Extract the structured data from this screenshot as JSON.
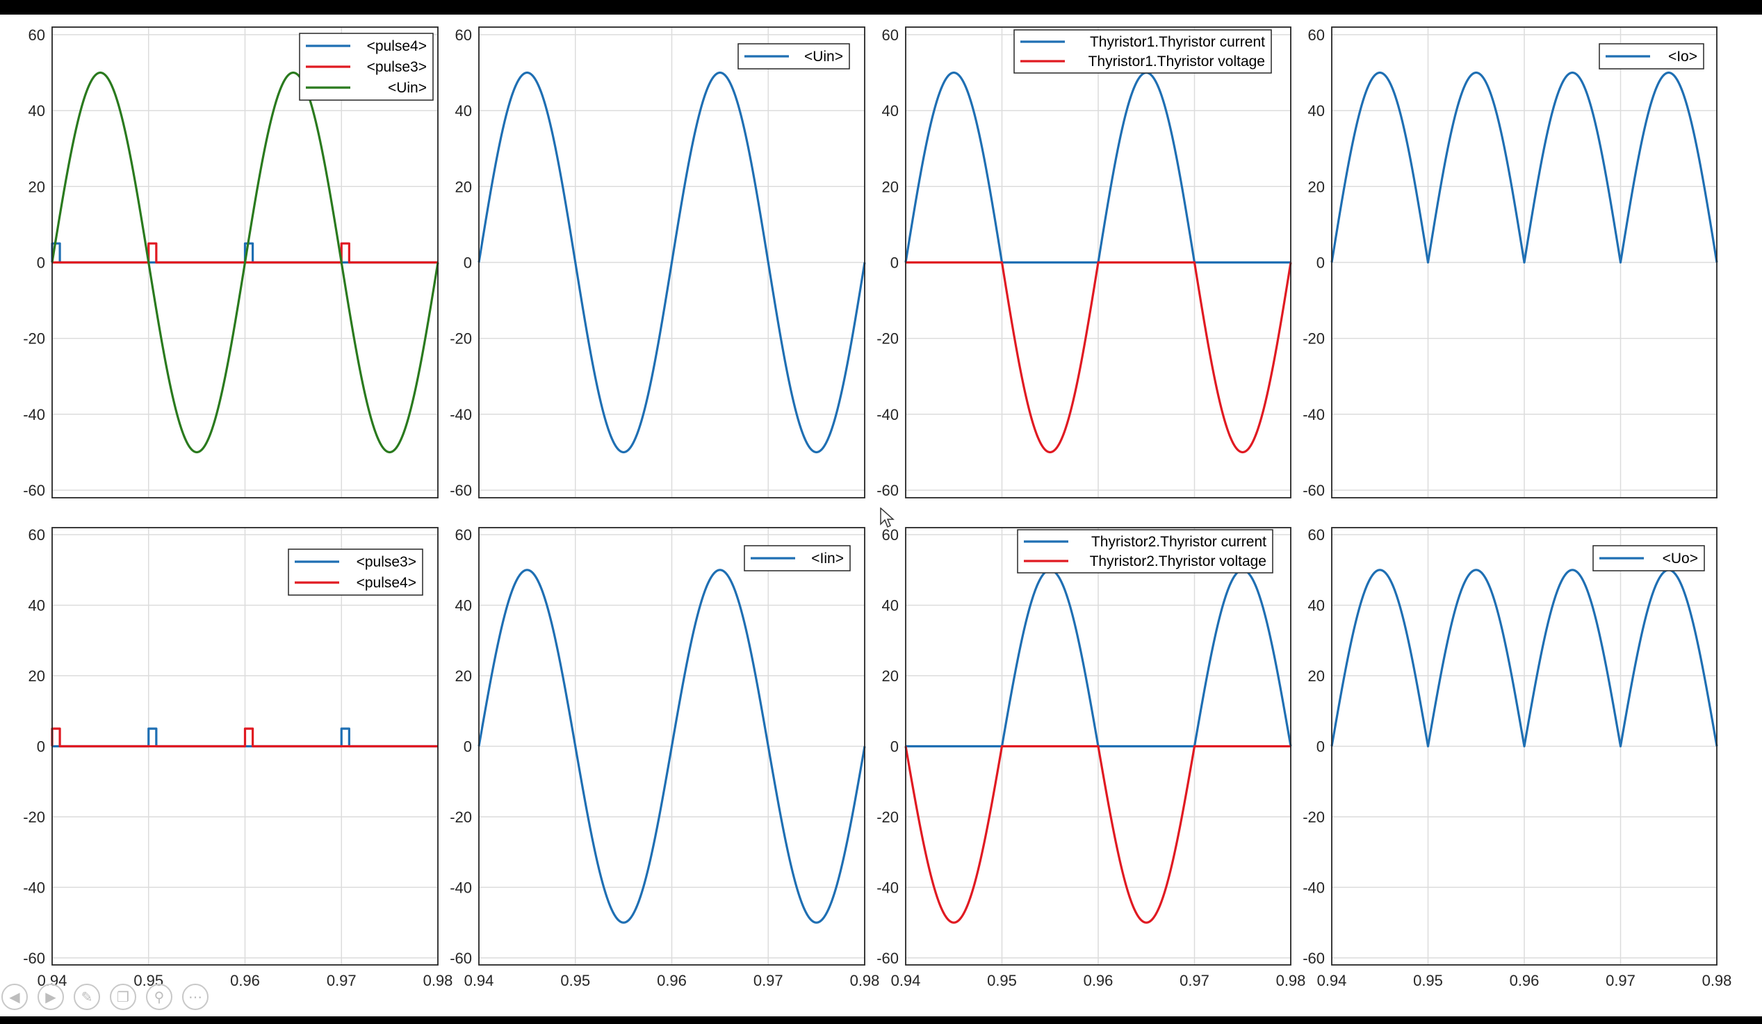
{
  "colors": {
    "blue": "#1f6fb3",
    "red": "#e01a22",
    "green": "#2a7a1e"
  },
  "toolbar": [
    "prev-icon",
    "next-icon",
    "pen-icon",
    "copy-icon",
    "zoom-icon",
    "more-icon"
  ],
  "chart_data": [
    {
      "type": "line",
      "xlim": [
        0.94,
        0.98
      ],
      "ylim": [
        -62,
        62
      ],
      "x_ticks": [
        "0.94",
        "0.95",
        "0.96",
        "0.97",
        "0.98"
      ],
      "y_ticks": [
        "60",
        "40",
        "20",
        "0",
        "-20",
        "-40",
        "-60"
      ],
      "show_x_ticks": false,
      "grid": true,
      "legend_position": "top-right",
      "series": [
        {
          "name": "<pulse4>",
          "color": "blue",
          "signal": "pulse",
          "start": 0.94,
          "width": 0.0008,
          "height": 5
        },
        {
          "name": "<pulse3>",
          "color": "red",
          "signal": "pulse",
          "start": 0.95,
          "width": 0.0008,
          "height": 5
        },
        {
          "name": "<Uin>",
          "color": "green",
          "signal": "sine",
          "amplitude": 50,
          "frequency_hz": 50
        }
      ]
    },
    {
      "type": "line",
      "xlim": [
        0.94,
        0.98
      ],
      "ylim": [
        -62,
        62
      ],
      "x_ticks": [
        "0.94",
        "0.95",
        "0.96",
        "0.97",
        "0.98"
      ],
      "y_ticks": [
        "60",
        "40",
        "20",
        "0",
        "-20",
        "-40",
        "-60"
      ],
      "show_x_ticks": false,
      "grid": true,
      "legend_position": "top-right",
      "series": [
        {
          "name": "<Uin>",
          "color": "blue",
          "signal": "sine",
          "amplitude": 50,
          "frequency_hz": 50
        }
      ]
    },
    {
      "type": "line",
      "xlim": [
        0.94,
        0.98
      ],
      "ylim": [
        -62,
        62
      ],
      "x_ticks": [
        "0.94",
        "0.95",
        "0.96",
        "0.97",
        "0.98"
      ],
      "y_ticks": [
        "60",
        "40",
        "20",
        "0",
        "-20",
        "-40",
        "-60"
      ],
      "show_x_ticks": false,
      "grid": true,
      "legend_position": "top-right",
      "series": [
        {
          "name": "Thyristor1.Thyristor current",
          "color": "blue",
          "signal": "sine_positive",
          "amplitude": 50,
          "frequency_hz": 50
        },
        {
          "name": "Thyristor1.Thyristor voltage",
          "color": "red",
          "signal": "sine_negative",
          "amplitude": 50,
          "frequency_hz": 50
        }
      ]
    },
    {
      "type": "line",
      "xlim": [
        0.94,
        0.98
      ],
      "ylim": [
        -62,
        62
      ],
      "x_ticks": [
        "0.94",
        "0.95",
        "0.96",
        "0.97",
        "0.98"
      ],
      "y_ticks": [
        "60",
        "40",
        "20",
        "0",
        "-20",
        "-40",
        "-60"
      ],
      "show_x_ticks": false,
      "grid": true,
      "legend_position": "top-right",
      "series": [
        {
          "name": "<Io>",
          "color": "blue",
          "signal": "sine_abs",
          "amplitude": 50,
          "frequency_hz": 50
        }
      ]
    },
    {
      "type": "line",
      "xlim": [
        0.94,
        0.98
      ],
      "ylim": [
        -62,
        62
      ],
      "x_ticks": [
        "0.94",
        "0.95",
        "0.96",
        "0.97",
        "0.98"
      ],
      "y_ticks": [
        "60",
        "40",
        "20",
        "0",
        "-20",
        "-40",
        "-60"
      ],
      "show_x_ticks": true,
      "grid": true,
      "legend_position": "top-right",
      "series": [
        {
          "name": "<pulse3>",
          "color": "blue",
          "signal": "pulse",
          "start": 0.95,
          "width": 0.0008,
          "height": 5
        },
        {
          "name": "<pulse4>",
          "color": "red",
          "signal": "pulse",
          "start": 0.94,
          "width": 0.0008,
          "height": 5
        }
      ]
    },
    {
      "type": "line",
      "xlim": [
        0.94,
        0.98
      ],
      "ylim": [
        -62,
        62
      ],
      "x_ticks": [
        "0.94",
        "0.95",
        "0.96",
        "0.97",
        "0.98"
      ],
      "y_ticks": [
        "60",
        "40",
        "20",
        "0",
        "-20",
        "-40",
        "-60"
      ],
      "show_x_ticks": true,
      "grid": true,
      "legend_position": "top-right",
      "series": [
        {
          "name": "<Iin>",
          "color": "blue",
          "signal": "sine",
          "amplitude": 50,
          "frequency_hz": 50
        }
      ]
    },
    {
      "type": "line",
      "xlim": [
        0.94,
        0.98
      ],
      "ylim": [
        -62,
        62
      ],
      "x_ticks": [
        "0.94",
        "0.95",
        "0.96",
        "0.97",
        "0.98"
      ],
      "y_ticks": [
        "60",
        "40",
        "20",
        "0",
        "-20",
        "-40",
        "-60"
      ],
      "show_x_ticks": true,
      "grid": true,
      "legend_position": "top-right",
      "series": [
        {
          "name": "Thyristor2.Thyristor current",
          "color": "blue",
          "signal": "neg_sine_positive",
          "amplitude": 50,
          "frequency_hz": 50
        },
        {
          "name": "Thyristor2.Thyristor voltage",
          "color": "red",
          "signal": "neg_sine_negative",
          "amplitude": 50,
          "frequency_hz": 50
        }
      ]
    },
    {
      "type": "line",
      "xlim": [
        0.94,
        0.98
      ],
      "ylim": [
        -62,
        62
      ],
      "x_ticks": [
        "0.94",
        "0.95",
        "0.96",
        "0.97",
        "0.98"
      ],
      "y_ticks": [
        "60",
        "40",
        "20",
        "0",
        "-20",
        "-40",
        "-60"
      ],
      "show_x_ticks": true,
      "grid": true,
      "legend_position": "top-right",
      "series": [
        {
          "name": "<Uo>",
          "color": "blue",
          "signal": "sine_abs",
          "amplitude": 50,
          "frequency_hz": 50
        }
      ]
    }
  ]
}
